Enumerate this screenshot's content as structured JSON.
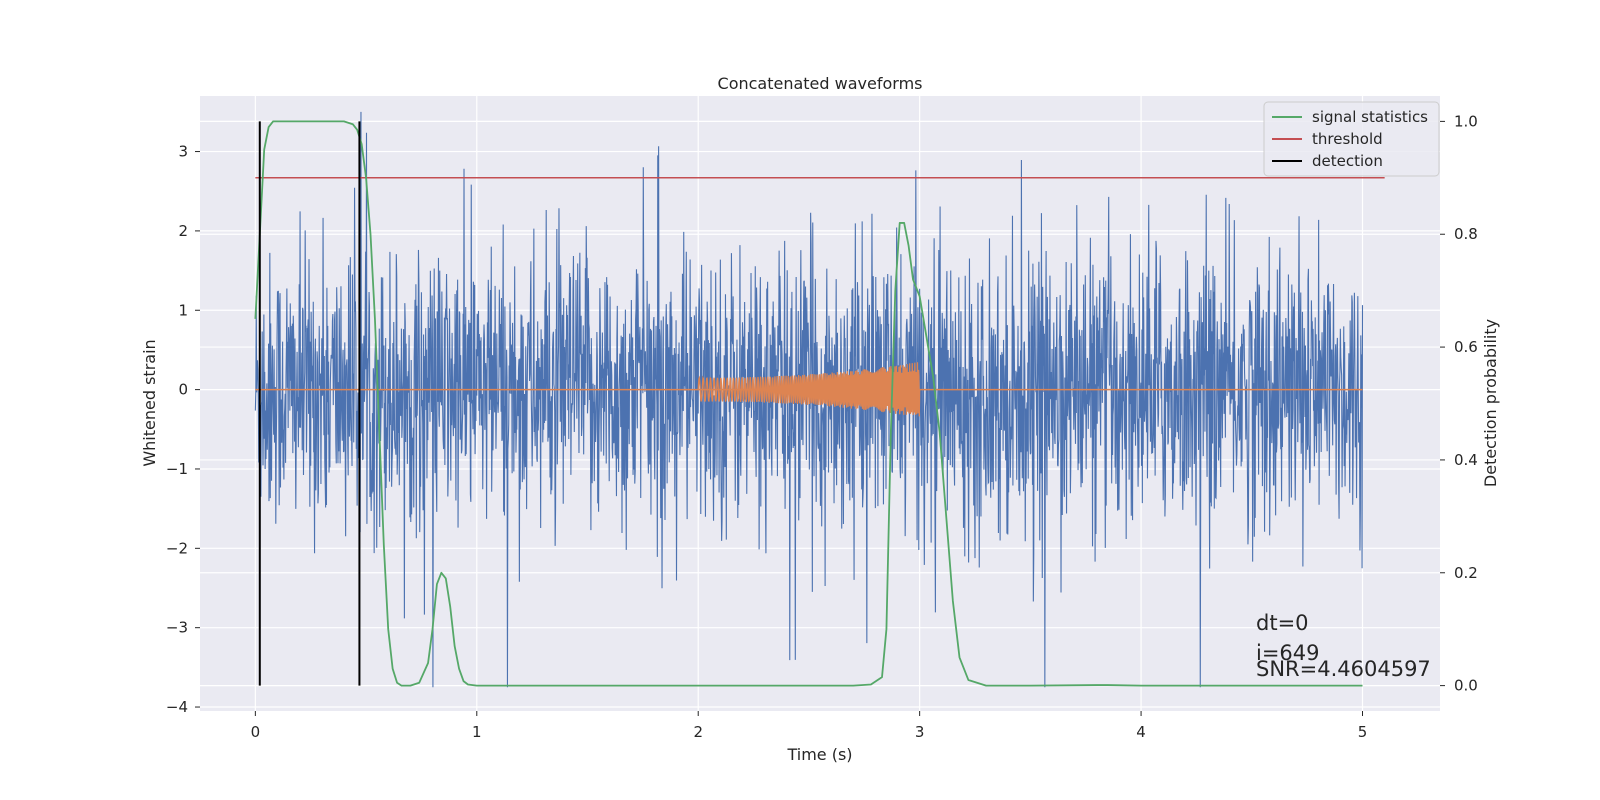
{
  "chart_data": {
    "type": "line",
    "title": "Concatenated waveforms",
    "xlabel": "Time (s)",
    "ylabel": "Whitened strain",
    "y2label": "Detection probability",
    "xlim": [
      -0.25,
      5.35
    ],
    "ylim": [
      -4.05,
      3.7
    ],
    "y2lim": [
      -0.045,
      1.045
    ],
    "xticks": [
      0,
      1,
      2,
      3,
      4,
      5
    ],
    "xtick_labels": [
      "0",
      "1",
      "2",
      "3",
      "4",
      "5"
    ],
    "yticks": [
      -4,
      -3,
      -2,
      -1,
      0,
      1,
      2,
      3
    ],
    "ytick_labels": [
      "−4",
      "−3",
      "−2",
      "−1",
      "0",
      "1",
      "2",
      "3"
    ],
    "y2ticks": [
      0.0,
      0.2,
      0.4,
      0.6,
      0.8,
      1.0
    ],
    "y2tick_labels": [
      "0.0",
      "0.2",
      "0.4",
      "0.6",
      "0.8",
      "1.0"
    ],
    "grid": true,
    "legend_position": "top-right",
    "background": "#eaeaf2",
    "series": [
      {
        "name": "",
        "axis": "left",
        "kind": "noise",
        "color": "#4c72b0",
        "x_range": [
          0,
          5
        ],
        "envelope": [
          -1.5,
          1.5
        ],
        "max": 3.5,
        "min": -3.75
      },
      {
        "name": "",
        "axis": "left",
        "kind": "chirp",
        "color": "#dd8452",
        "baseline_x": [
          0,
          5
        ],
        "chirp_x": [
          2.0,
          3.0
        ],
        "chirp_amp": [
          0.15,
          0.35
        ]
      },
      {
        "name": "signal statistics",
        "axis": "right",
        "color": "#55a868",
        "x": [
          0.0,
          0.02,
          0.04,
          0.06,
          0.08,
          0.1,
          0.15,
          0.2,
          0.3,
          0.4,
          0.44,
          0.46,
          0.48,
          0.5,
          0.52,
          0.54,
          0.56,
          0.58,
          0.6,
          0.62,
          0.64,
          0.66,
          0.7,
          0.74,
          0.78,
          0.8,
          0.82,
          0.84,
          0.86,
          0.88,
          0.9,
          0.92,
          0.94,
          0.96,
          1.0,
          1.2,
          1.5,
          2.0,
          2.5,
          2.7,
          2.78,
          2.83,
          2.85,
          2.87,
          2.89,
          2.91,
          2.93,
          2.95,
          2.97,
          3.0,
          3.03,
          3.06,
          3.09,
          3.12,
          3.15,
          3.18,
          3.22,
          3.3,
          3.5,
          3.8,
          3.85,
          4.0,
          4.5,
          5.0
        ],
        "y": [
          0.65,
          0.8,
          0.95,
          0.99,
          1.0,
          1.0,
          1.0,
          1.0,
          1.0,
          1.0,
          0.995,
          0.985,
          0.96,
          0.9,
          0.8,
          0.65,
          0.45,
          0.25,
          0.1,
          0.03,
          0.005,
          0.0,
          0.0,
          0.005,
          0.04,
          0.1,
          0.18,
          0.2,
          0.19,
          0.14,
          0.07,
          0.03,
          0.008,
          0.002,
          0.0,
          0.0,
          0.0,
          0.0,
          0.0,
          0.0,
          0.002,
          0.015,
          0.1,
          0.45,
          0.7,
          0.82,
          0.82,
          0.78,
          0.72,
          0.69,
          0.62,
          0.55,
          0.45,
          0.3,
          0.15,
          0.05,
          0.01,
          0.0,
          0.0,
          0.001,
          0.001,
          0.0,
          0.0,
          0.0
        ]
      },
      {
        "name": "threshold",
        "axis": "right",
        "color": "#c44e52",
        "x": [
          0.0,
          5.1
        ],
        "y": [
          0.9,
          0.9
        ]
      },
      {
        "name": "detection",
        "axis": "right",
        "color": "#000000",
        "vlines_x": [
          0.02,
          0.47
        ],
        "vlines_y": [
          0.0,
          1.0
        ]
      }
    ],
    "annotations": [
      "dt=0",
      "i=649",
      "SNR=4.4604597"
    ],
    "annotation_position": "bottom-right"
  }
}
